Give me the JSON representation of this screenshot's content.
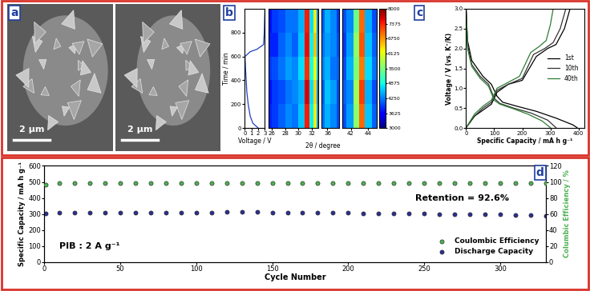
{
  "chart_data": [
    {
      "panel": "a",
      "type": "image",
      "scale_bars": [
        "2 μm",
        "2 μm"
      ]
    },
    {
      "panel": "b",
      "type": "line",
      "x_label": "Voltage / V",
      "y_label": "Time / min",
      "x": [
        2.0,
        1.2,
        0.8,
        0.5,
        0.3,
        0.2,
        0.1,
        0.02,
        0.8,
        1.8,
        2.8,
        2.9,
        3.0
      ],
      "values": [
        0,
        40,
        100,
        200,
        300,
        400,
        500,
        600,
        640,
        660,
        700,
        800,
        1000
      ],
      "color": "#1f3fbf",
      "xlim": [
        0,
        3
      ],
      "xticks": [
        0,
        1,
        2,
        3
      ],
      "ylim": [
        0,
        1000
      ],
      "yticks": [
        0,
        200,
        400,
        600,
        800
      ]
    },
    {
      "type": "heatmap",
      "x_label": "2θ / degree",
      "time": [
        100,
        300,
        500,
        700,
        900
      ],
      "ylim": [
        0,
        1000
      ],
      "tick_labels": "x",
      "segments": [
        {
          "two_theta": [
            25.5,
            26.5,
            27.5,
            28.5,
            29.5,
            30.5,
            31.2,
            32.0,
            32.4,
            33.0
          ],
          "xlim": [
            25.5,
            33
          ],
          "xticks": [
            26,
            28,
            30,
            32
          ],
          "cells": [
            [
              3800,
              3900,
              4100,
              4300,
              4200,
              4600,
              7400,
              4800,
              6300,
              4400
            ],
            [
              3700,
              3900,
              4000,
              4200,
              4300,
              4500,
              7600,
              4700,
              6400,
              4300
            ],
            [
              3900,
              4000,
              4200,
              4400,
              4300,
              4700,
              7300,
              4900,
              6200,
              4500
            ],
            [
              3800,
              3800,
              4100,
              4300,
              4100,
              4600,
              7500,
              4800,
              6500,
              4400
            ],
            [
              3700,
              3900,
              4000,
              4200,
              4200,
              4500,
              7400,
              4700,
              6300,
              4300
            ]
          ]
        },
        {
          "two_theta": [
            35.5,
            36.0,
            36.5,
            37.0
          ],
          "xlim": [
            35.5,
            37
          ],
          "xticks": [
            36
          ],
          "cells": [
            [
              4200,
              4500,
              4300,
              4000
            ],
            [
              4100,
              4600,
              4400,
              4000
            ],
            [
              4300,
              4500,
              4200,
              4100
            ],
            [
              4200,
              4400,
              4300,
              4000
            ],
            [
              4100,
              4500,
              4300,
              3900
            ]
          ]
        },
        {
          "two_theta": [
            41.0,
            42.0,
            42.6,
            43.3,
            44.0,
            45.0
          ],
          "xlim": [
            41,
            45
          ],
          "xticks": [
            42,
            44
          ],
          "cells": [
            [
              4000,
              4400,
              5600,
              7000,
              4600,
              4100
            ],
            [
              4100,
              4300,
              5700,
              7200,
              4500,
              4000
            ],
            [
              4000,
              4500,
              5500,
              6900,
              4700,
              4200
            ],
            [
              3900,
              4400,
              5600,
              7100,
              4600,
              4100
            ],
            [
              4000,
              4300,
              5400,
              7000,
              4500,
              4000
            ]
          ]
        }
      ],
      "colorbar": {
        "range": [
          3000,
          8000
        ],
        "ticks": [
          3000,
          3625,
          4250,
          4875,
          5500,
          6125,
          6750,
          7375,
          8000
        ]
      }
    },
    {
      "panel": "c",
      "type": "line",
      "x_label": "Specific Capacity / mA h g⁻¹",
      "y_label": "Voltage / V (vs. K⁺/K)",
      "xlim": [
        0,
        420
      ],
      "xticks": [
        0,
        100,
        200,
        300,
        400
      ],
      "ylim": [
        0,
        3.0
      ],
      "yticks": [
        {
          "value": 0,
          "label": "0.0"
        },
        {
          "value": 0.5,
          "label": "0.5"
        },
        {
          "value": 1.0,
          "label": "1.0"
        },
        {
          "value": 1.5,
          "label": "1.5"
        },
        {
          "value": 2.0,
          "label": "2.0"
        },
        {
          "value": 2.5,
          "label": "2.5"
        },
        {
          "value": 3.0,
          "label": "3.0"
        }
      ],
      "legend": "center right",
      "series": [
        {
          "name": "1st",
          "color": "#000000",
          "discharge": {
            "x": [
              0,
              5,
              20,
              60,
              90,
              110,
              130,
              180,
              250,
              320,
              380,
              395
            ],
            "values": [
              3.0,
              2.2,
              1.7,
              1.3,
              1.1,
              0.8,
              0.65,
              0.55,
              0.42,
              0.25,
              0.08,
              0.01
            ]
          },
          "charge": {
            "x": [
              0,
              30,
              60,
              90,
              110,
              150,
              200,
              250,
              290,
              320,
              350,
              370
            ],
            "values": [
              0.01,
              0.3,
              0.45,
              0.6,
              0.9,
              1.1,
              1.2,
              1.8,
              2.0,
              2.1,
              2.5,
              3.0
            ]
          }
        },
        {
          "name": "10th",
          "color": "#333333",
          "discharge": {
            "x": [
              0,
              5,
              20,
              50,
              80,
              100,
              120,
              170,
              230,
              290,
              320
            ],
            "values": [
              3.0,
              2.1,
              1.6,
              1.3,
              1.1,
              0.75,
              0.62,
              0.5,
              0.38,
              0.2,
              0.01
            ]
          },
          "charge": {
            "x": [
              0,
              30,
              60,
              90,
              110,
              150,
              200,
              240,
              280,
              310,
              335,
              355
            ],
            "values": [
              0.01,
              0.3,
              0.5,
              0.65,
              0.95,
              1.1,
              1.25,
              1.85,
              2.0,
              2.15,
              2.5,
              3.0
            ]
          }
        },
        {
          "name": "40th",
          "color": "#2e7d32",
          "discharge": {
            "x": [
              0,
              5,
              20,
              50,
              80,
              100,
              120,
              170,
              220,
              270,
              300
            ],
            "values": [
              3.0,
              2.0,
              1.55,
              1.25,
              1.05,
              0.7,
              0.6,
              0.48,
              0.35,
              0.18,
              0.01
            ]
          },
          "charge": {
            "x": [
              0,
              30,
              60,
              90,
              110,
              150,
              190,
              230,
              260,
              285,
              300,
              310
            ],
            "values": [
              0.01,
              0.35,
              0.55,
              0.7,
              1.0,
              1.15,
              1.3,
              1.9,
              2.05,
              2.2,
              2.6,
              3.0
            ]
          }
        }
      ]
    },
    {
      "panel": "d",
      "type": "scatter",
      "x_label": "Cycle Number",
      "y_label": "Specific Capacity / mA h g⁻¹",
      "y2_label": "Columbic Efficiency / %",
      "x": [
        1,
        10,
        20,
        30,
        40,
        50,
        60,
        70,
        80,
        90,
        100,
        110,
        120,
        130,
        140,
        150,
        160,
        170,
        180,
        190,
        200,
        210,
        220,
        230,
        240,
        250,
        260,
        270,
        280,
        290,
        300,
        310,
        320,
        330
      ],
      "xlim": [
        0,
        330
      ],
      "xticks": [
        0,
        50,
        100,
        150,
        200,
        250,
        300
      ],
      "ylim": [
        0,
        600
      ],
      "yticks": [
        0,
        100,
        200,
        300,
        400,
        500,
        600
      ],
      "y2lim": [
        0,
        120
      ],
      "y2ticks": [
        0,
        20,
        40,
        60,
        80,
        100,
        120
      ],
      "legend": "lower right",
      "annotations": [
        "Retention = 92.6%",
        "PIB : 2 A g⁻¹"
      ],
      "series": [
        {
          "name": "Coulombic Efficiency",
          "color": "#4caf50",
          "axis": "y2",
          "marker": "o",
          "values": [
            97,
            99,
            99,
            99,
            99,
            99,
            99,
            99,
            99,
            99,
            99,
            99,
            99,
            99,
            99,
            99,
            99,
            99,
            99,
            99,
            99,
            99,
            99,
            99,
            99,
            99,
            99,
            99,
            99,
            99,
            99,
            99,
            99,
            99
          ]
        },
        {
          "name": "Discharge Capacity",
          "color": "#2b2f8f",
          "marker": "o",
          "values": [
            302,
            306,
            308,
            309,
            310,
            310,
            310,
            310,
            310,
            310,
            310,
            310,
            311,
            312,
            311,
            310,
            309,
            308,
            308,
            307,
            306,
            305,
            304,
            303,
            302,
            301,
            300,
            299,
            298,
            297,
            296,
            294,
            292,
            288
          ]
        }
      ]
    }
  ]
}
